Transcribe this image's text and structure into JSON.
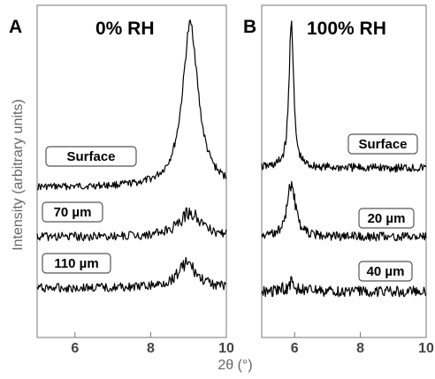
{
  "ylabel": "Intensity (arbitrary units)",
  "xlabel": "2θ (°)",
  "chart_data": [
    {
      "type": "line",
      "panel": "A",
      "title": "0% RH",
      "xlim": [
        5,
        10
      ],
      "xticks": [
        "6",
        "8",
        "10"
      ],
      "xtick_values": [
        6,
        8,
        10
      ],
      "series": [
        {
          "name": "Surface",
          "peak": 9.05,
          "width": 0.25,
          "height": 185,
          "base": 212,
          "noise": 4
        },
        {
          "name": "70 µm",
          "peak": 9.05,
          "width": 0.35,
          "height": 28,
          "base": 268,
          "noise": 5
        },
        {
          "name": "110 µm",
          "peak": 8.95,
          "width": 0.3,
          "height": 28,
          "base": 326,
          "noise": 5
        }
      ]
    },
    {
      "type": "line",
      "panel": "B",
      "title": "100% RH",
      "xlim": [
        5,
        10
      ],
      "xticks": [
        "6",
        "8",
        "10"
      ],
      "xtick_values": [
        6,
        8,
        10
      ],
      "series": [
        {
          "name": "Surface",
          "peak": 5.9,
          "width": 0.08,
          "height": 170,
          "base": 190,
          "noise": 5
        },
        {
          "name": "20 µm",
          "peak": 5.9,
          "width": 0.15,
          "height": 60,
          "base": 268,
          "noise": 5
        },
        {
          "name": "40 µm",
          "peak": 5.9,
          "width": 0.2,
          "height": 8,
          "base": 330,
          "noise": 6
        }
      ]
    }
  ]
}
